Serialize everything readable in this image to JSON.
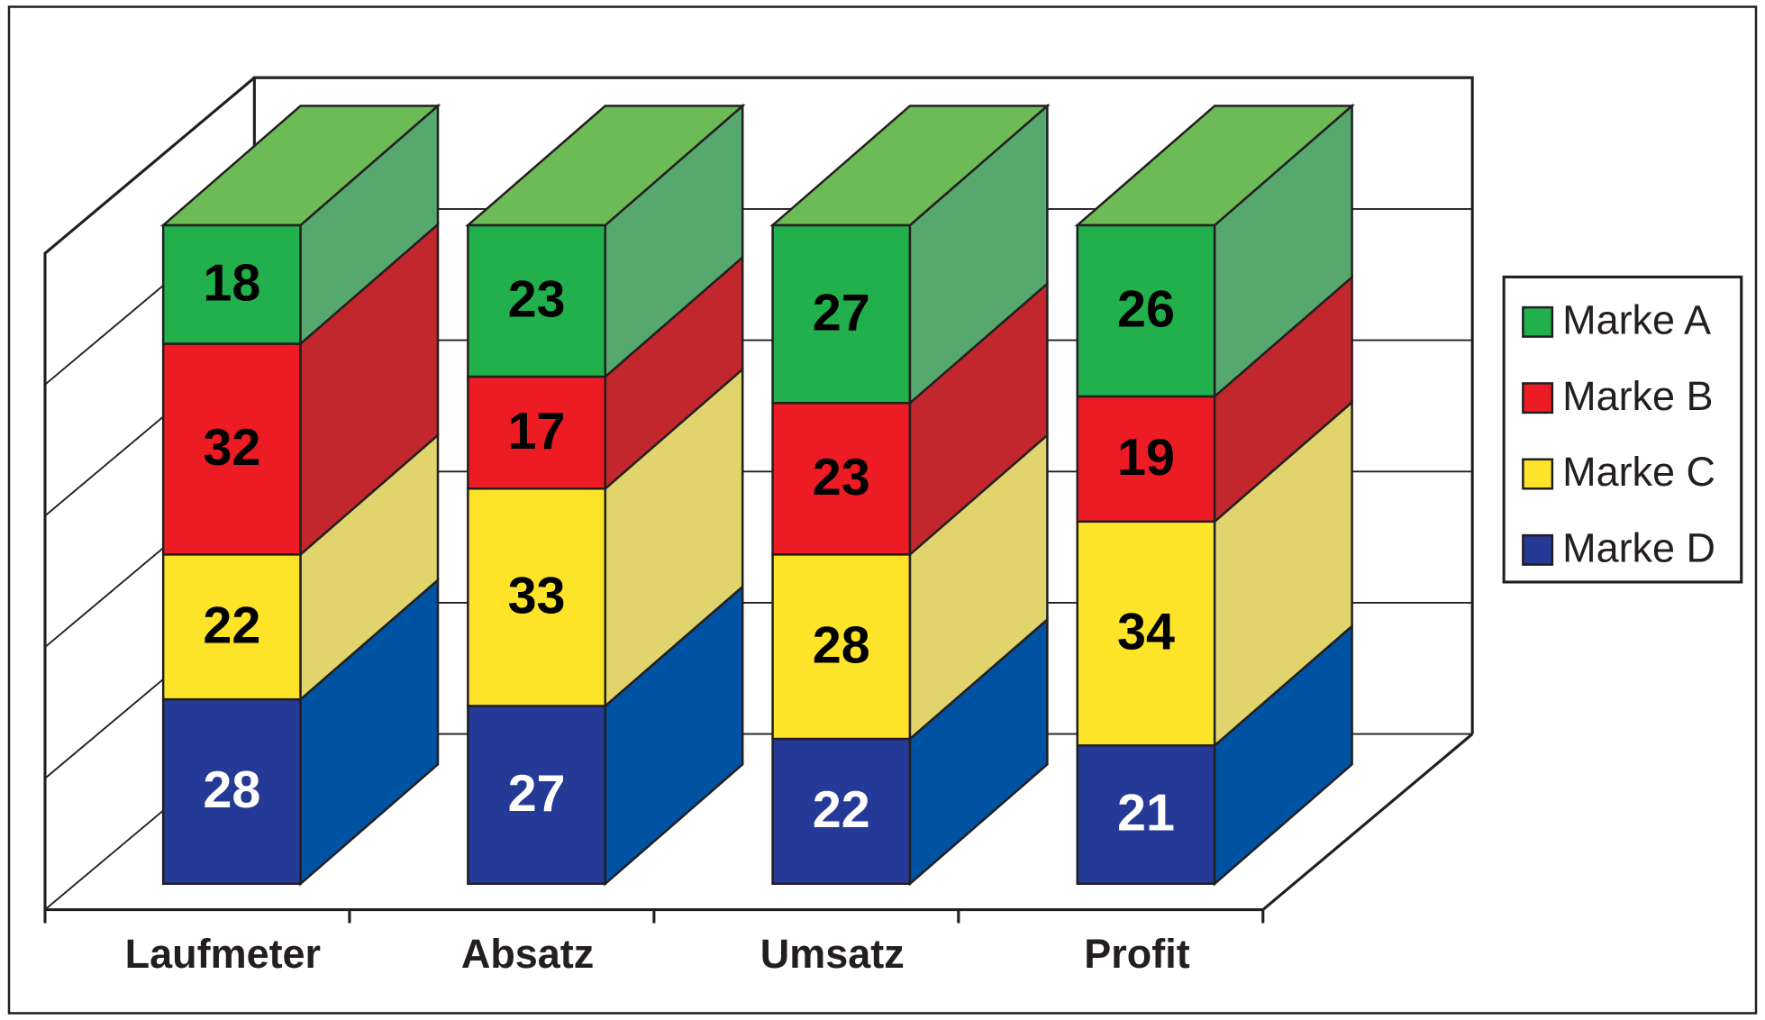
{
  "chart_data": {
    "type": "stacked_bar_3d",
    "categories": [
      "Laufmeter",
      "Absatz",
      "Umsatz",
      "Profit"
    ],
    "series": [
      {
        "name": "Marke A",
        "color": "#21b04b",
        "side_color": "#56a86f",
        "top_color": "#6dbb56",
        "label_color": "#000000",
        "values": [
          18,
          23,
          27,
          26
        ]
      },
      {
        "name": "Marke B",
        "color": "#ed1c24",
        "side_color": "#c1272d",
        "top_color": "#e0454a",
        "label_color": "#000000",
        "values": [
          32,
          17,
          23,
          19
        ]
      },
      {
        "name": "Marke C",
        "color": "#fde428",
        "side_color": "#e1d46d",
        "top_color": "#f0e36a",
        "label_color": "#000000",
        "values": [
          22,
          33,
          28,
          34
        ]
      },
      {
        "name": "Marke D",
        "color": "#253a96",
        "side_color": "#0052a3",
        "top_color": "#3a5fb0",
        "label_color": "#ffffff",
        "values": [
          28,
          27,
          22,
          21
        ]
      }
    ],
    "ylim": [
      0,
      100
    ],
    "yticks": [
      0,
      20,
      40,
      60,
      80,
      100
    ],
    "grid": true,
    "legend": "right"
  }
}
